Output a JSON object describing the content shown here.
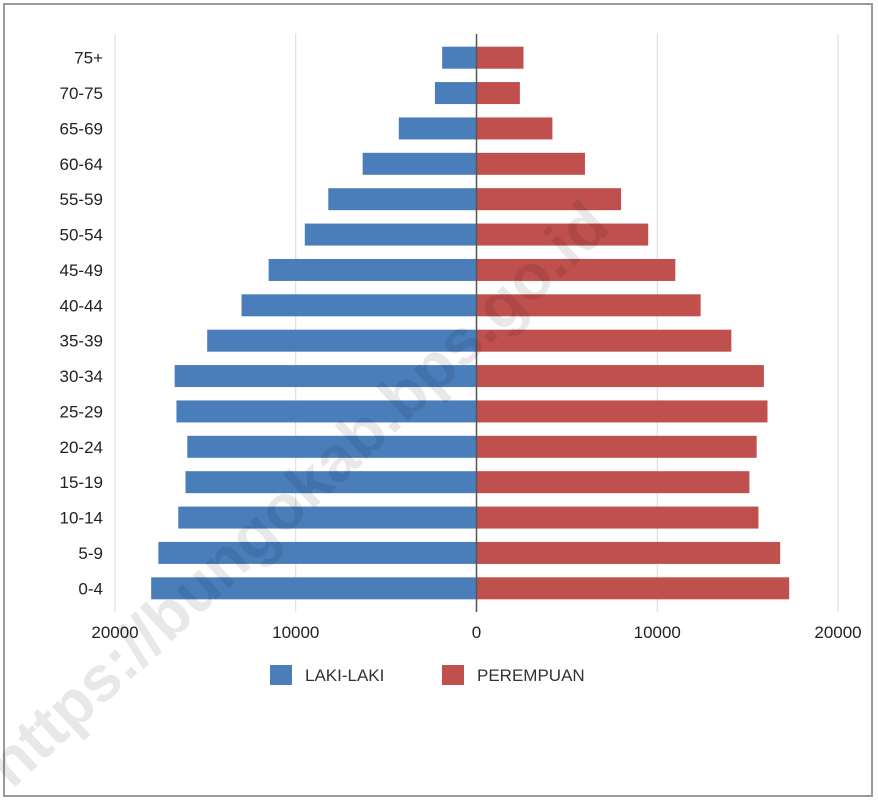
{
  "chart_data": {
    "type": "bar",
    "orientation": "horizontal",
    "layout": "population-pyramid",
    "categories": [
      "75+",
      "70-75",
      "65-69",
      "60-64",
      "55-59",
      "50-54",
      "45-49",
      "40-44",
      "35-39",
      "30-34",
      "25-29",
      "20-24",
      "15-19",
      "10-14",
      "5-9",
      "0-4"
    ],
    "series": [
      {
        "name": "LAKI-LAKI",
        "color": "#4a7ebb",
        "side": "left",
        "values": [
          1900,
          2300,
          4300,
          6300,
          8200,
          9500,
          11500,
          13000,
          14900,
          16700,
          16600,
          16000,
          16100,
          16500,
          17600,
          18000
        ]
      },
      {
        "name": "PEREMPUAN",
        "color": "#c0504d",
        "side": "right",
        "values": [
          2600,
          2400,
          4200,
          6000,
          8000,
          9500,
          11000,
          12400,
          14100,
          15900,
          16100,
          15500,
          15100,
          15600,
          16800,
          17300
        ]
      }
    ],
    "x_ticks": [
      "20000",
      "10000",
      "0",
      "10000",
      "20000"
    ],
    "xlim": [
      -20000,
      20000
    ],
    "xlabel": "",
    "ylabel": "",
    "title": "",
    "grid": "vertical",
    "legend": "bottom-center"
  },
  "watermark": "https://bungokab.bps.go.id"
}
